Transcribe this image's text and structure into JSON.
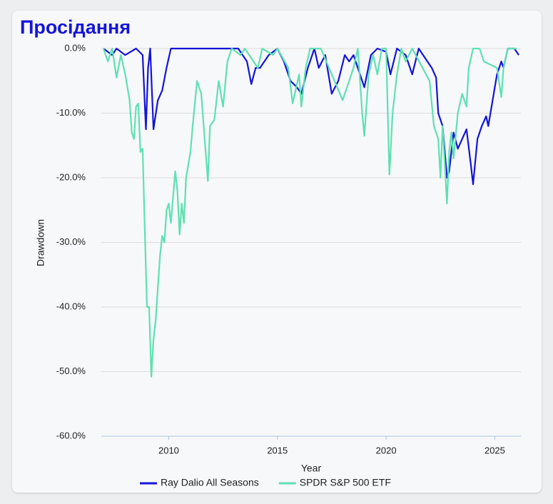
{
  "chart_data": {
    "type": "line",
    "title": "Просідання",
    "x_label": "Year",
    "y_label": "Drawdown",
    "xlim": [
      2006.9,
      2026.2
    ],
    "xticks": [
      2010,
      2015,
      2020,
      2025
    ],
    "ylim": [
      -60,
      0
    ],
    "yticks": [
      {
        "value": 0,
        "label": "0.0%"
      },
      {
        "value": -10,
        "label": "-10.0%"
      },
      {
        "value": -20,
        "label": "-20.0%"
      },
      {
        "value": -30,
        "label": "-30.0%"
      },
      {
        "value": -40,
        "label": "-40.0%"
      },
      {
        "value": -50,
        "label": "-50.0%"
      },
      {
        "value": -60,
        "label": "-60.0%"
      }
    ],
    "grid": true,
    "legend": "bottom",
    "series": [
      {
        "name": "Ray Dalio All Seasons",
        "color": "#1414d6",
        "x": [
          2007.0,
          2007.4,
          2007.6,
          2008.0,
          2008.5,
          2008.8,
          2008.95,
          2009.05,
          2009.15,
          2009.3,
          2009.5,
          2009.7,
          2009.9,
          2010.1,
          2011.0,
          2012.0,
          2013.2,
          2013.4,
          2013.6,
          2013.8,
          2014.0,
          2014.2,
          2014.6,
          2015.0,
          2015.3,
          2015.6,
          2015.9,
          2016.1,
          2016.4,
          2016.7,
          2016.9,
          2017.2,
          2017.5,
          2017.8,
          2018.1,
          2018.3,
          2018.5,
          2018.8,
          2019.0,
          2019.3,
          2019.6,
          2020.0,
          2020.2,
          2020.5,
          2020.9,
          2021.2,
          2021.5,
          2021.9,
          2022.1,
          2022.3,
          2022.4,
          2022.6,
          2022.8,
          2022.9,
          2023.1,
          2023.3,
          2023.5,
          2023.7,
          2023.9,
          2024.0,
          2024.2,
          2024.4,
          2024.6,
          2024.7,
          2024.9,
          2025.1,
          2025.3,
          2025.4,
          2025.6,
          2025.9,
          2026.1
        ],
        "values": [
          0,
          -1,
          0,
          -1,
          0,
          -1,
          -12.5,
          -3,
          0,
          -12.5,
          -8,
          -6.5,
          -3,
          0,
          0,
          0,
          0,
          -1,
          -2,
          -5.5,
          -3,
          -3,
          -1,
          0,
          -2,
          -5,
          -6,
          -7,
          -3,
          0,
          -3,
          -1,
          -7,
          -5,
          -1,
          -2,
          -1,
          -4,
          -6,
          -1,
          0,
          -0.5,
          -4,
          0,
          -1,
          -4,
          0,
          -2,
          -3,
          -4.5,
          -10,
          -12,
          -20,
          -19,
          -13,
          -15.5,
          -14,
          -12.5,
          -18,
          -21,
          -14,
          -12,
          -10.5,
          -12,
          -8,
          -4,
          -2,
          -3,
          0,
          0,
          -1
        ]
      },
      {
        "name": "SPDR S&P 500 ETF",
        "color": "#5fe0b2",
        "x": [
          2007.0,
          2007.2,
          2007.4,
          2007.6,
          2007.8,
          2008.0,
          2008.2,
          2008.3,
          2008.4,
          2008.5,
          2008.6,
          2008.7,
          2008.8,
          2008.9,
          2009.0,
          2009.1,
          2009.2,
          2009.3,
          2009.4,
          2009.5,
          2009.6,
          2009.7,
          2009.8,
          2009.9,
          2010.0,
          2010.1,
          2010.3,
          2010.4,
          2010.5,
          2010.6,
          2010.7,
          2010.8,
          2011.0,
          2011.1,
          2011.3,
          2011.5,
          2011.7,
          2011.8,
          2011.9,
          2012.1,
          2012.3,
          2012.5,
          2012.7,
          2012.9,
          2013.3,
          2013.5,
          2014.1,
          2014.3,
          2014.8,
          2015.0,
          2015.5,
          2015.7,
          2016.0,
          2016.1,
          2016.3,
          2016.5,
          2017.0,
          2018.0,
          2018.2,
          2018.5,
          2018.7,
          2018.9,
          2019.0,
          2019.2,
          2019.4,
          2019.6,
          2019.8,
          2020.0,
          2020.15,
          2020.3,
          2020.5,
          2020.7,
          2020.9,
          2021.2,
          2022.0,
          2022.2,
          2022.4,
          2022.5,
          2022.6,
          2022.7,
          2022.8,
          2022.9,
          2023.0,
          2023.1,
          2023.3,
          2023.5,
          2023.7,
          2023.8,
          2024.0,
          2024.3,
          2024.5,
          2025.1,
          2025.3,
          2025.4,
          2025.6,
          2026.0
        ],
        "values": [
          0,
          -2,
          0,
          -4.5,
          -1,
          -4,
          -8,
          -13,
          -14,
          -9,
          -8.5,
          -16,
          -15.5,
          -28,
          -40,
          -40,
          -50.8,
          -45,
          -42,
          -37,
          -32,
          -29,
          -30,
          -25,
          -24,
          -27,
          -19,
          -22,
          -28.8,
          -24,
          -27,
          -20,
          -16,
          -12,
          -5,
          -7,
          -16,
          -20.5,
          -12,
          -11,
          -5,
          -9,
          -2,
          0,
          -1,
          0,
          -3,
          0,
          -1,
          0,
          -3,
          -8.5,
          -4,
          -9,
          -3,
          0,
          0,
          -8,
          -6,
          -3,
          0,
          -10,
          -13.5,
          -4,
          -1,
          -4,
          0,
          0,
          -19.5,
          -10,
          -4,
          0,
          -2,
          0,
          -5,
          -12,
          -14,
          -20,
          -12,
          -18,
          -24,
          -16,
          -13,
          -17,
          -10,
          -7,
          -9,
          -3,
          0,
          0,
          -2,
          -3,
          -7.5,
          -3,
          0,
          0
        ]
      }
    ]
  }
}
